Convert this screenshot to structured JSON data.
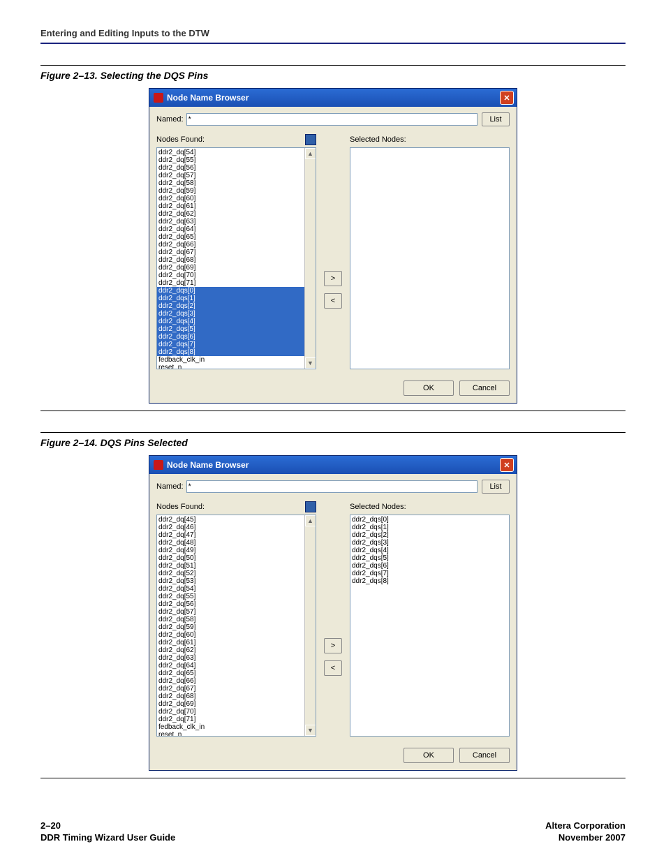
{
  "header": {
    "section": "Entering and Editing Inputs to the DTW"
  },
  "figure1": {
    "title": "Figure 2–13. Selecting the DQS Pins",
    "dialog": {
      "title": "Node Name Browser",
      "named_label": "Named:",
      "named_value": "*",
      "list_btn": "List",
      "found_label": "Nodes Found:",
      "selected_label": "Selected Nodes:",
      "move_right": ">",
      "move_left": "<",
      "ok": "OK",
      "cancel": "Cancel",
      "scroll_up": "▲",
      "scroll_down": "▼",
      "found_items": [
        {
          "t": "ddr2_dq[54]",
          "s": false
        },
        {
          "t": "ddr2_dq[55]",
          "s": false
        },
        {
          "t": "ddr2_dq[56]",
          "s": false
        },
        {
          "t": "ddr2_dq[57]",
          "s": false
        },
        {
          "t": "ddr2_dq[58]",
          "s": false
        },
        {
          "t": "ddr2_dq[59]",
          "s": false
        },
        {
          "t": "ddr2_dq[60]",
          "s": false
        },
        {
          "t": "ddr2_dq[61]",
          "s": false
        },
        {
          "t": "ddr2_dq[62]",
          "s": false
        },
        {
          "t": "ddr2_dq[63]",
          "s": false
        },
        {
          "t": "ddr2_dq[64]",
          "s": false
        },
        {
          "t": "ddr2_dq[65]",
          "s": false
        },
        {
          "t": "ddr2_dq[66]",
          "s": false
        },
        {
          "t": "ddr2_dq[67]",
          "s": false
        },
        {
          "t": "ddr2_dq[68]",
          "s": false
        },
        {
          "t": "ddr2_dq[69]",
          "s": false
        },
        {
          "t": "ddr2_dq[70]",
          "s": false
        },
        {
          "t": "ddr2_dq[71]",
          "s": false
        },
        {
          "t": "ddr2_dqs[0]",
          "s": true
        },
        {
          "t": "ddr2_dqs[1]",
          "s": true
        },
        {
          "t": "ddr2_dqs[2]",
          "s": true
        },
        {
          "t": "ddr2_dqs[3]",
          "s": true
        },
        {
          "t": "ddr2_dqs[4]",
          "s": true
        },
        {
          "t": "ddr2_dqs[5]",
          "s": true
        },
        {
          "t": "ddr2_dqs[6]",
          "s": true
        },
        {
          "t": "ddr2_dqs[7]",
          "s": true
        },
        {
          "t": "ddr2_dqs[8]",
          "s": true
        },
        {
          "t": "fedback_clk_in",
          "s": false
        },
        {
          "t": "reset_n",
          "s": false
        }
      ],
      "selected_items": []
    }
  },
  "figure2": {
    "title": "Figure 2–14. DQS Pins Selected",
    "dialog": {
      "title": "Node Name Browser",
      "named_label": "Named:",
      "named_value": "*",
      "list_btn": "List",
      "found_label": "Nodes Found:",
      "selected_label": "Selected Nodes:",
      "move_right": ">",
      "move_left": "<",
      "ok": "OK",
      "cancel": "Cancel",
      "scroll_up": "▲",
      "scroll_down": "▼",
      "found_items": [
        {
          "t": "ddr2_dq[45]",
          "s": false
        },
        {
          "t": "ddr2_dq[46]",
          "s": false
        },
        {
          "t": "ddr2_dq[47]",
          "s": false
        },
        {
          "t": "ddr2_dq[48]",
          "s": false
        },
        {
          "t": "ddr2_dq[49]",
          "s": false
        },
        {
          "t": "ddr2_dq[50]",
          "s": false
        },
        {
          "t": "ddr2_dq[51]",
          "s": false
        },
        {
          "t": "ddr2_dq[52]",
          "s": false
        },
        {
          "t": "ddr2_dq[53]",
          "s": false
        },
        {
          "t": "ddr2_dq[54]",
          "s": false
        },
        {
          "t": "ddr2_dq[55]",
          "s": false
        },
        {
          "t": "ddr2_dq[56]",
          "s": false
        },
        {
          "t": "ddr2_dq[57]",
          "s": false
        },
        {
          "t": "ddr2_dq[58]",
          "s": false
        },
        {
          "t": "ddr2_dq[59]",
          "s": false
        },
        {
          "t": "ddr2_dq[60]",
          "s": false
        },
        {
          "t": "ddr2_dq[61]",
          "s": false
        },
        {
          "t": "ddr2_dq[62]",
          "s": false
        },
        {
          "t": "ddr2_dq[63]",
          "s": false
        },
        {
          "t": "ddr2_dq[64]",
          "s": false
        },
        {
          "t": "ddr2_dq[65]",
          "s": false
        },
        {
          "t": "ddr2_dq[66]",
          "s": false
        },
        {
          "t": "ddr2_dq[67]",
          "s": false
        },
        {
          "t": "ddr2_dq[68]",
          "s": false
        },
        {
          "t": "ddr2_dq[69]",
          "s": false
        },
        {
          "t": "ddr2_dq[70]",
          "s": false
        },
        {
          "t": "ddr2_dq[71]",
          "s": false
        },
        {
          "t": "fedback_clk_in",
          "s": false
        },
        {
          "t": "reset_n",
          "s": false
        }
      ],
      "selected_items": [
        {
          "t": "ddr2_dqs[0]"
        },
        {
          "t": "ddr2_dqs[1]"
        },
        {
          "t": "ddr2_dqs[2]"
        },
        {
          "t": "ddr2_dqs[3]"
        },
        {
          "t": "ddr2_dqs[4]"
        },
        {
          "t": "ddr2_dqs[5]"
        },
        {
          "t": "ddr2_dqs[6]"
        },
        {
          "t": "ddr2_dqs[7]"
        },
        {
          "t": "ddr2_dqs[8]"
        }
      ]
    }
  },
  "footer": {
    "page": "2–20",
    "guide": "DDR Timing Wizard User Guide",
    "company": "Altera Corporation",
    "date": "November 2007"
  }
}
